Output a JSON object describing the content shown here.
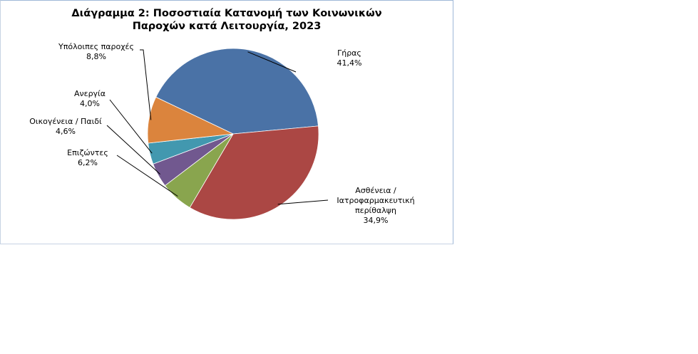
{
  "chart_data": {
    "type": "pie",
    "title": [
      "Διάγραμμα 2: Ποσοστιαία Κατανομή των Κοινωνικών",
      "Παροχών κατά Λειτουργία, 2023"
    ],
    "slices": [
      {
        "label": [
          "Γήρας"
        ],
        "value": 41.4,
        "value_label": "41,4%",
        "color": "#4a72a6"
      },
      {
        "label": [
          "Ασθένεια /",
          "Ιατροφαρμακευτική",
          "περίθαλψη"
        ],
        "value": 34.9,
        "value_label": "34,9%",
        "color": "#ab4744"
      },
      {
        "label": [
          "Επιζώντες"
        ],
        "value": 6.2,
        "value_label": "6,2%",
        "color": "#89a54e"
      },
      {
        "label": [
          "Οικογένεια / Παιδί"
        ],
        "value": 4.6,
        "value_label": "4,6%",
        "color": "#71588f"
      },
      {
        "label": [
          "Ανεργία"
        ],
        "value": 4.0,
        "value_label": "4,0%",
        "color": "#4298af"
      },
      {
        "label": [
          "Υπόλοιπες παροχές"
        ],
        "value": 8.8,
        "value_label": "8,8%",
        "color": "#db843d"
      }
    ]
  }
}
